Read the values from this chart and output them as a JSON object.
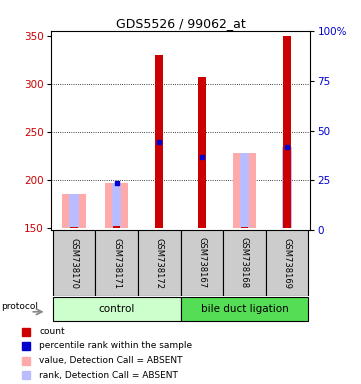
{
  "title": "GDS5526 / 99062_at",
  "samples": [
    "GSM738170",
    "GSM738171",
    "GSM738172",
    "GSM738167",
    "GSM738168",
    "GSM738169"
  ],
  "ylim_left": [
    148,
    355
  ],
  "ylim_right": [
    0,
    100
  ],
  "yticks_left": [
    150,
    200,
    250,
    300,
    350
  ],
  "yticks_right": [
    0,
    25,
    50,
    75,
    100
  ],
  "yright_labels": [
    "0",
    "25",
    "50",
    "75",
    "100%"
  ],
  "bar_bottom": 150,
  "count_values": [
    152,
    153,
    330,
    307,
    152,
    350
  ],
  "value_absent_top": [
    186,
    197,
    0,
    0,
    228,
    0
  ],
  "rank_absent_top": [
    186,
    197,
    0,
    0,
    228,
    234
  ],
  "percentile_values": [
    0,
    197,
    240,
    224,
    0,
    234
  ],
  "count_color": "#cc0000",
  "absent_value_color": "#ffaaaa",
  "absent_rank_color": "#bbbbff",
  "blue_marker_color": "#0000cc",
  "left_color": "#cc0000",
  "right_color": "#0000cc",
  "sample_box_color": "#cccccc",
  "ctrl_color": "#ccffcc",
  "bdl_color": "#55dd55"
}
